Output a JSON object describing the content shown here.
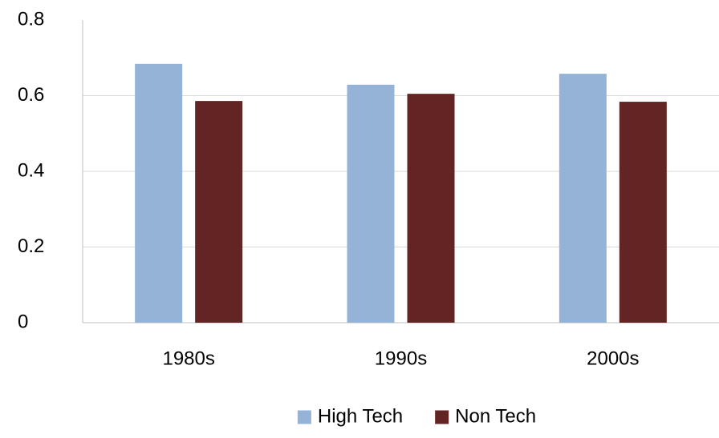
{
  "chart_data": {
    "type": "bar",
    "categories": [
      "1980s",
      "1990s",
      "2000s"
    ],
    "series": [
      {
        "name": "High Tech",
        "color": "#95b3d7",
        "values": [
          0.684,
          0.629,
          0.658
        ]
      },
      {
        "name": "Non Tech",
        "color": "#632523",
        "values": [
          0.586,
          0.605,
          0.584
        ]
      }
    ],
    "ylim": [
      0,
      0.8
    ],
    "yticks": [
      0,
      0.2,
      0.4,
      0.6,
      0.8
    ],
    "grid": true,
    "legend": "bottom"
  }
}
